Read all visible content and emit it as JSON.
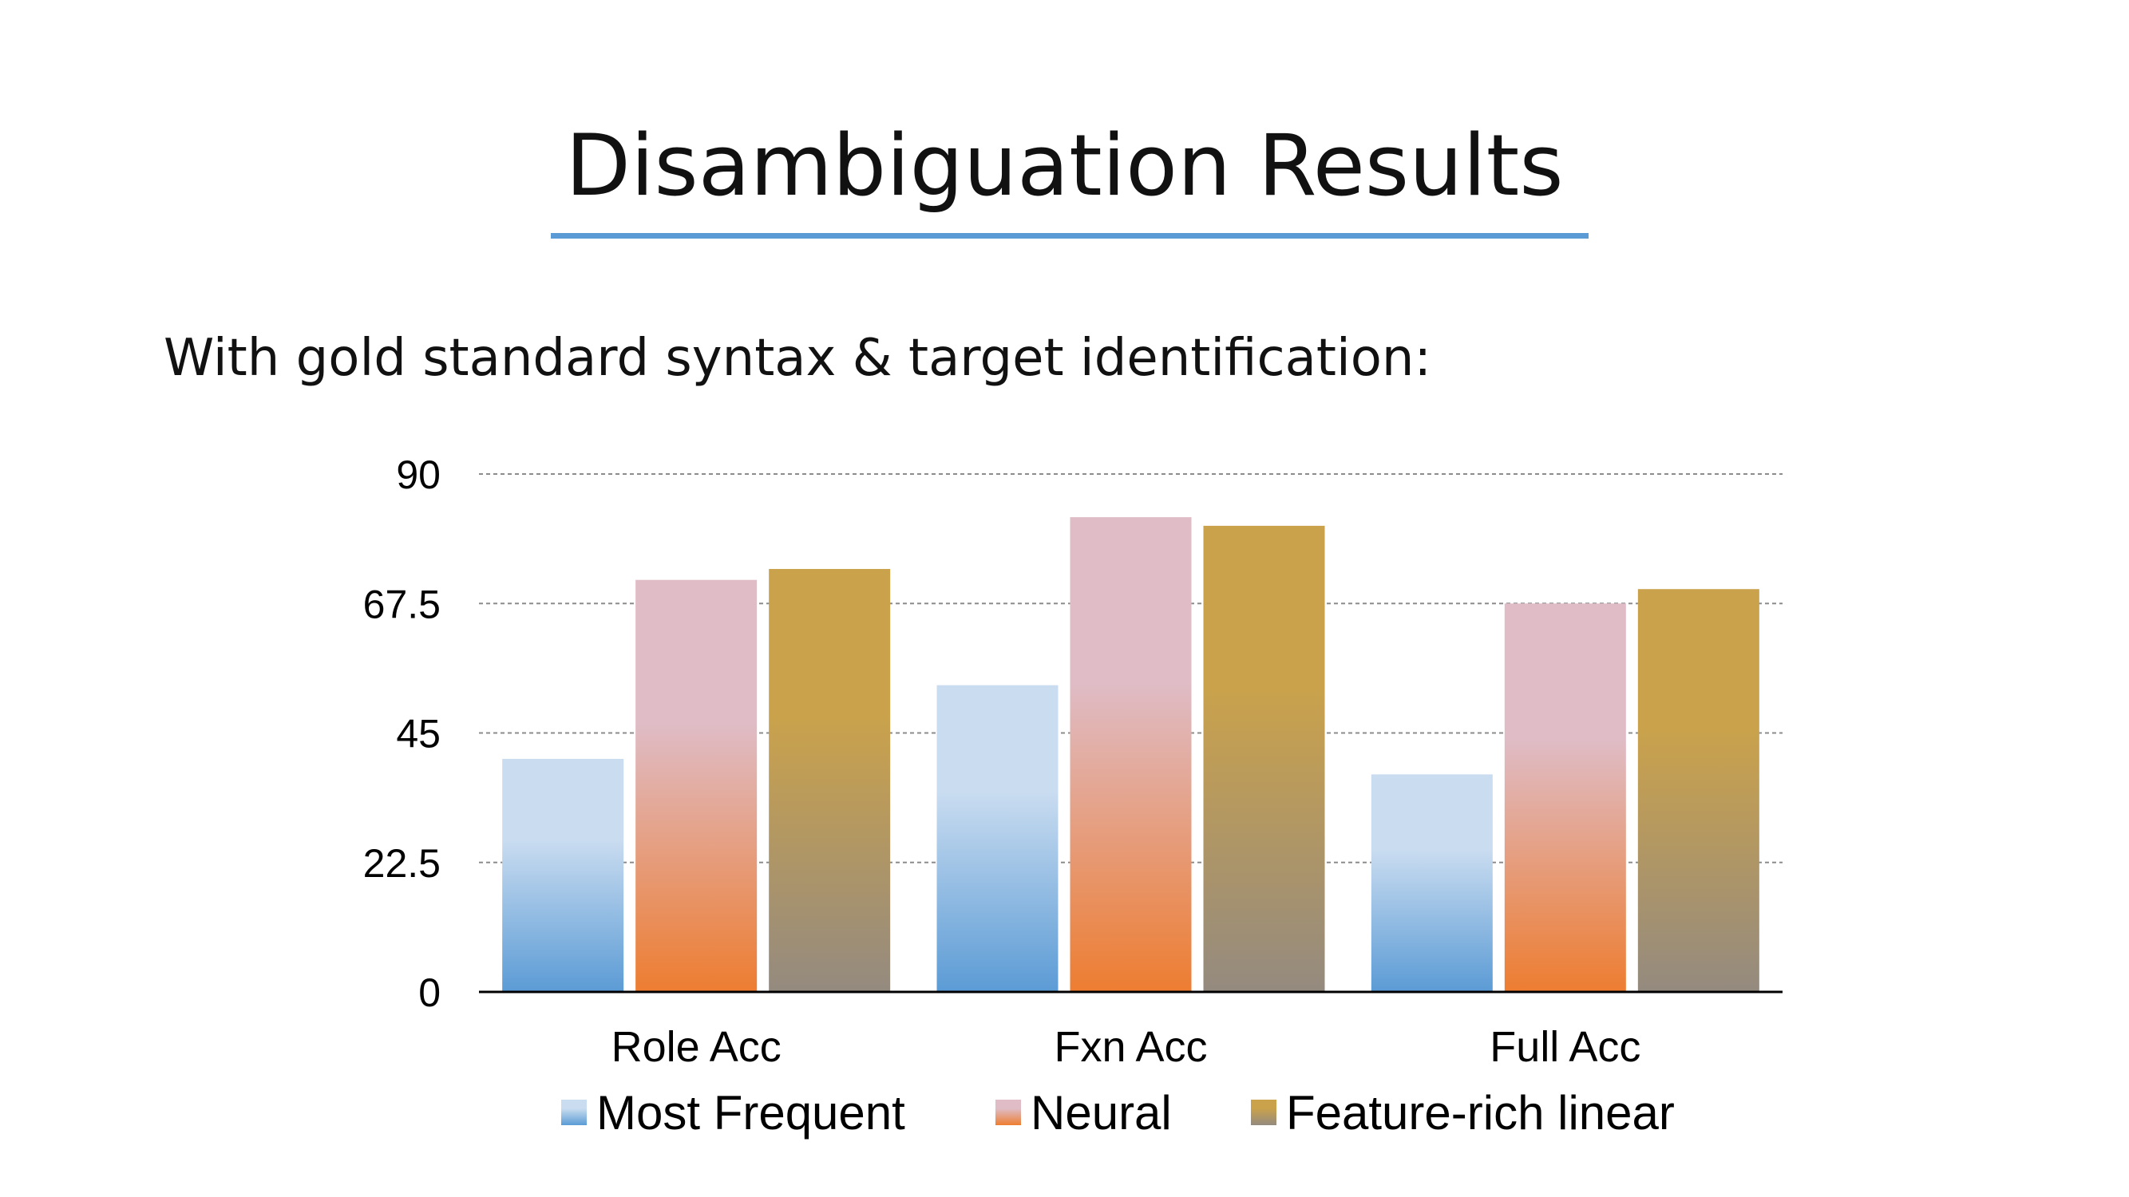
{
  "slide": {
    "title": "Disambiguation Results",
    "subtitle": "With gold standard syntax & target identification:",
    "accent_color": "#5b9bd5"
  },
  "chart_data": {
    "type": "bar",
    "categories": [
      "Role Acc",
      "Fxn Acc",
      "Full Acc"
    ],
    "series": [
      {
        "name": "Most Frequent",
        "values": [
          40.5,
          53.3,
          37.8
        ],
        "color_top": "#c9dcf0",
        "color_bottom": "#5b9bd5"
      },
      {
        "name": "Neural",
        "values": [
          71.6,
          82.5,
          67.5
        ],
        "color_top": "#dfbcc6",
        "color_bottom": "#ed7d31"
      },
      {
        "name": "Feature-rich linear",
        "values": [
          73.5,
          81.0,
          70.0
        ],
        "color_top": "#caa24c",
        "color_bottom": "#948a7f"
      }
    ],
    "yticks": [
      "0",
      "22.5",
      "45",
      "67.5",
      "90"
    ],
    "ylim": [
      0,
      90
    ],
    "grid": "dashed horizontal",
    "legend": "bottom"
  }
}
